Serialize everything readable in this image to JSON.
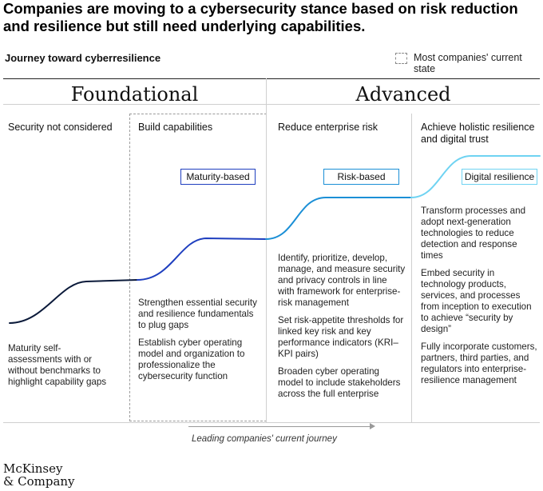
{
  "title": "Companies are moving to a cybersecurity stance based on risk reduction and resilience but still need underlying capabilities.",
  "subtitle": "Journey toward cyberresilience",
  "legend": {
    "label": "Most companies' current state"
  },
  "phases": {
    "foundational": "Foundational",
    "advanced": "Advanced"
  },
  "columns": [
    {
      "heading": "Security not considered",
      "tag": "",
      "items": [
        "Maturity self-assessments with or without benchmarks to highlight capability gaps"
      ]
    },
    {
      "heading": "Build capabilities",
      "tag": "Maturity-based",
      "items": [
        "Strengthen essential security and resilience fundamentals to plug gaps",
        "Establish cyber operating model and organization to professionalize the cybersecurity function"
      ]
    },
    {
      "heading": "Reduce enterprise risk",
      "tag": "Risk-based",
      "items": [
        "Identify, prioritize, develop, manage, and measure security and privacy controls in line with framework for enterprise-risk management",
        "Set risk-appetite thresholds for linked key risk and key performance indicators (KRI–KPI pairs)",
        "Broaden cyber operating model to include stakeholders across the full enterprise"
      ]
    },
    {
      "heading": "Achieve holistic resilience and digital trust",
      "tag": "Digital resilience",
      "items": [
        "Transform processes and adopt next-generation technologies to reduce detection and response times",
        "Embed security in technology products, services, and processes from inception to execution to achieve “security by design”",
        "Fully incorporate customers, partners, third parties, and regulators into enterprise-resilience management"
      ]
    }
  ],
  "journey_label": "Leading companies' current journey",
  "logo": {
    "line1": "McKinsey",
    "line2": "& Company"
  },
  "colors": {
    "stage1": "#0b1a3a",
    "stage2": "#1f3fbf",
    "stage3": "#1b8fd6",
    "stage4": "#6fd3f2",
    "text": "#222222"
  }
}
